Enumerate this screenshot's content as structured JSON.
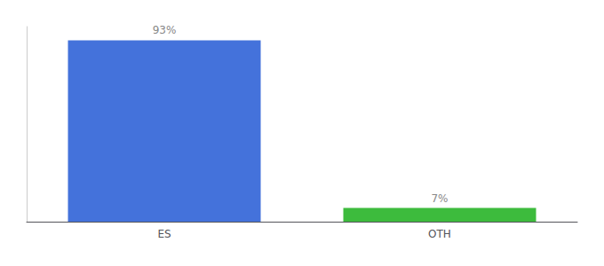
{
  "chart_data": {
    "type": "bar",
    "categories": [
      "ES",
      "OTH"
    ],
    "values": [
      93,
      7
    ],
    "value_labels": [
      "93%",
      "7%"
    ],
    "colors": [
      "#4472db",
      "#3dbb3d"
    ],
    "ylim": [
      0,
      100
    ],
    "data_labels": true,
    "grid": false,
    "tick_labels": "x"
  }
}
